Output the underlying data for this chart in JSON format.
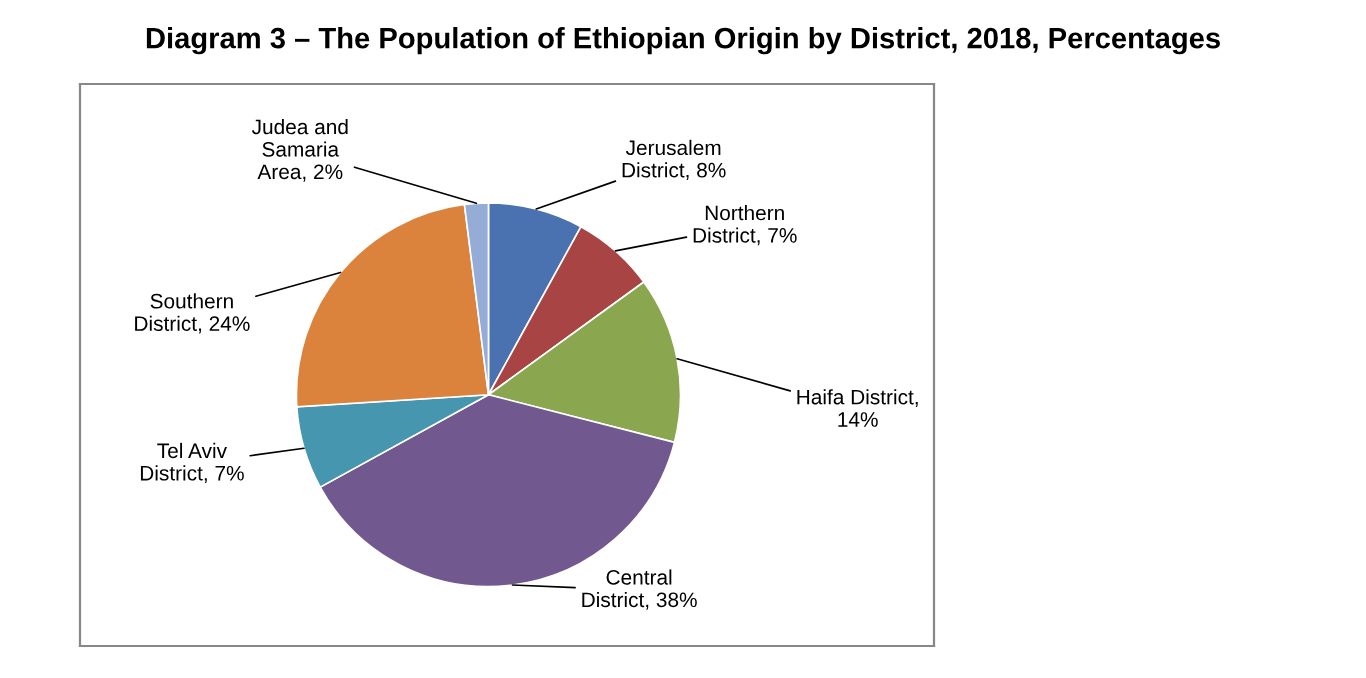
{
  "chart_data": {
    "type": "pie",
    "title": "Diagram 3 – The Population of Ethiopian Origin by District, 2018, Percentages",
    "categories": [
      "Jerusalem\nDistrict, 8%",
      "Northern\nDistrict, 7%",
      "Haifa District,\n14%",
      "Central\nDistrict, 38%",
      "Tel Aviv\nDistrict, 7%",
      "Southern\nDistrict, 24%",
      "Judea and\nSamaria\nArea, 2%"
    ],
    "values": [
      8,
      7,
      14,
      38,
      7,
      24,
      2
    ],
    "colors": [
      "#4a72b0",
      "#a84544",
      "#8aa64e",
      "#71598f",
      "#4596ae",
      "#db833c",
      "#95acd6"
    ]
  }
}
